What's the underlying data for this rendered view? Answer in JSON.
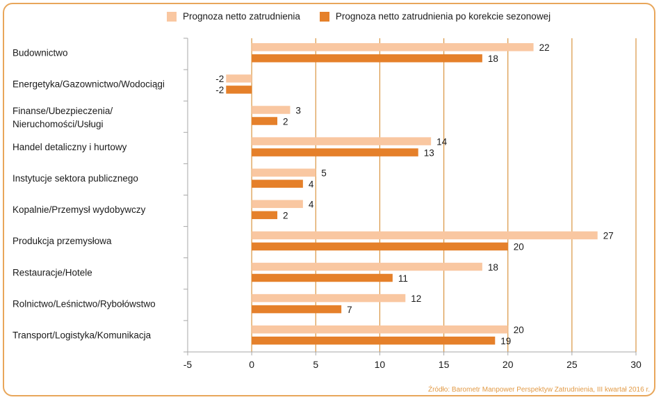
{
  "colors": {
    "series_light": "#f9c7a1",
    "series_dark": "#e5802a",
    "frame": "#e8a65a",
    "gridline": "#d9943f",
    "axis": "#a7a7a7",
    "source_text": "#e29a45"
  },
  "chart_data": {
    "type": "bar",
    "orientation": "horizontal",
    "categories": [
      "Budownictwo",
      "Energetyka/Gazownictwo/Wodociągi",
      "Finanse/Ubezpieczenia/ Nieruchomości/Usługi",
      "Handel detaliczny i hurtowy",
      "Instytucje sektora publicznego",
      "Kopalnie/Przemysł wydobywczy",
      "Produkcja przemysłowa",
      "Restauracje/Hotele",
      "Rolnictwo/Leśnictwo/Rybołówstwo",
      "Transport/Logistyka/Komunikacja"
    ],
    "series": [
      {
        "name": "Prognoza netto zatrudnienia",
        "values": [
          22,
          -2,
          3,
          14,
          5,
          4,
          27,
          18,
          12,
          20
        ]
      },
      {
        "name": "Prognoza netto zatrudnienia po korekcie sezonowej",
        "values": [
          18,
          -2,
          2,
          13,
          4,
          2,
          20,
          11,
          7,
          19
        ]
      }
    ],
    "xlim": [
      -5,
      30
    ],
    "xticks": [
      -5,
      0,
      5,
      10,
      15,
      20,
      25,
      30
    ],
    "legend_position": "top",
    "grid": true
  },
  "source": "Źródło: Barometr Manpower Perspektyw Zatrudnienia, III kwartał 2016 r."
}
